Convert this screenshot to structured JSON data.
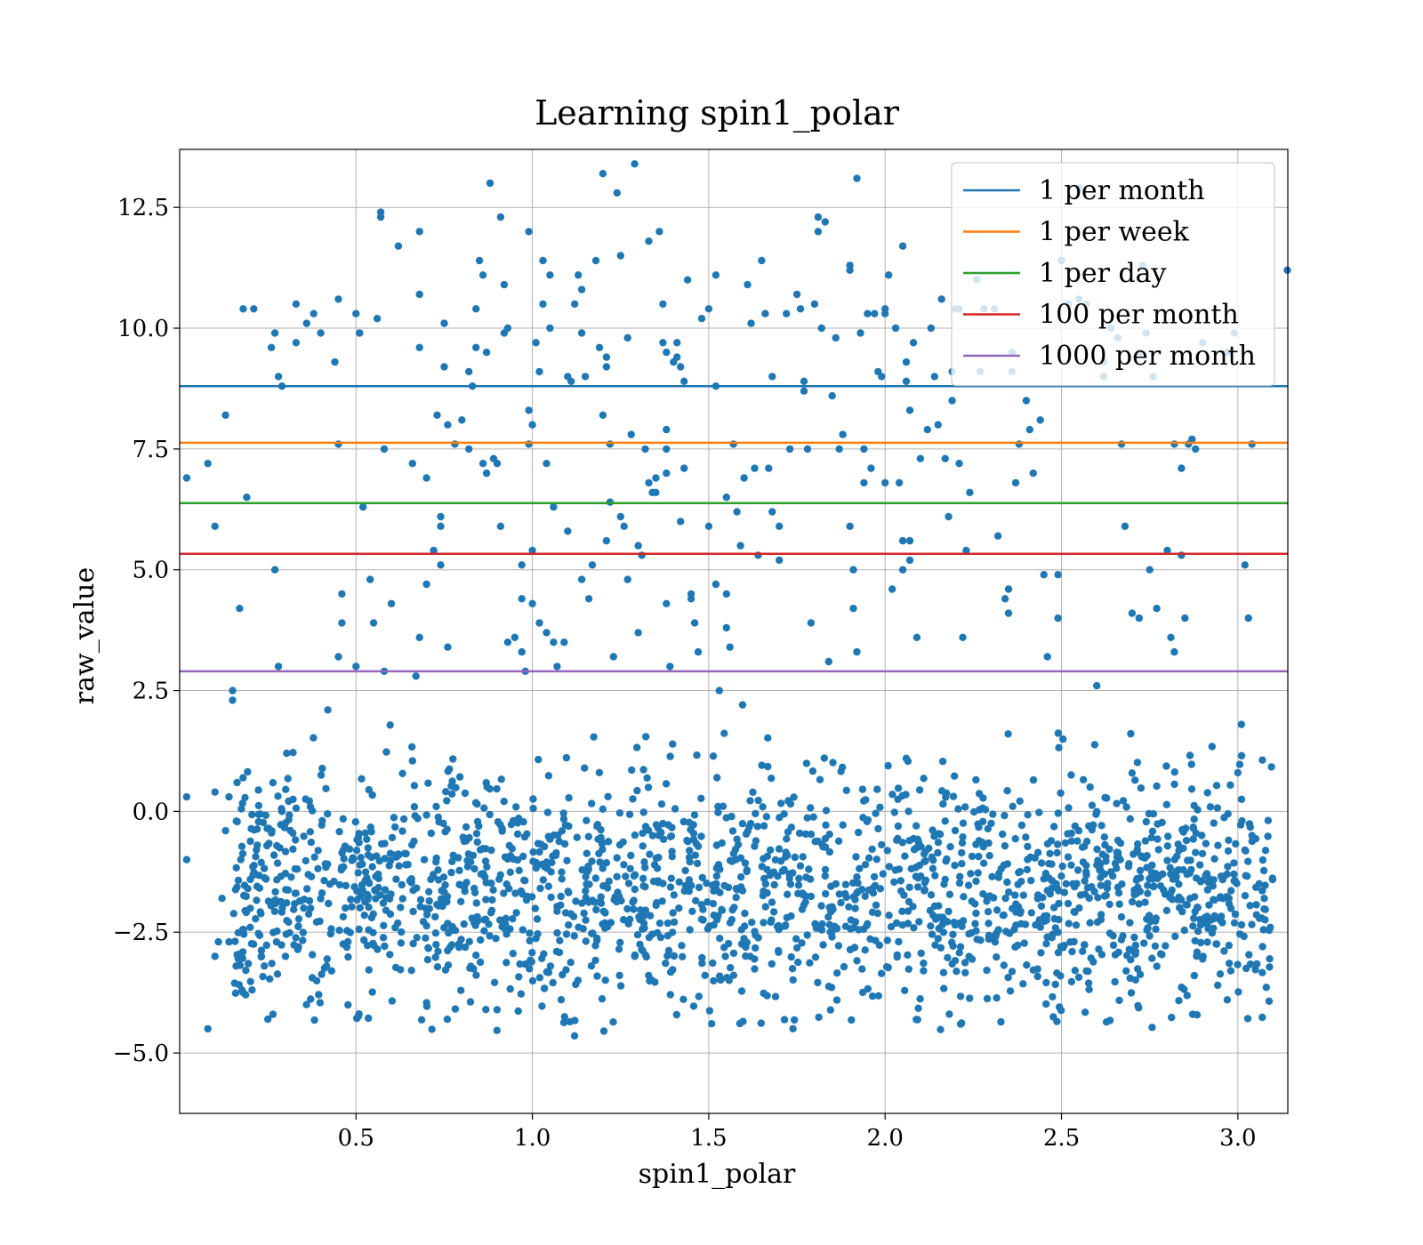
{
  "chart_data": {
    "type": "scatter",
    "title": "Learning spin1_polar",
    "xlabel": "spin1_polar",
    "ylabel": "raw_value",
    "xlim": [
      0.0,
      3.1416
    ],
    "ylim": [
      -6.25,
      13.7
    ],
    "xticks": [
      0.5,
      1.0,
      1.5,
      2.0,
      2.5,
      3.0
    ],
    "xtick_labels": [
      "0.5",
      "1.0",
      "1.5",
      "2.0",
      "2.5",
      "3.0"
    ],
    "yticks": [
      -5.0,
      -2.5,
      0.0,
      2.5,
      5.0,
      7.5,
      10.0,
      12.5
    ],
    "ytick_labels": [
      "−5.0",
      "−2.5",
      "0.0",
      "2.5",
      "5.0",
      "7.5",
      "10.0",
      "12.5"
    ],
    "grid": true,
    "legend_position": "top-right",
    "point_color": "#1f77b4",
    "scatter_points": [
      [
        0.02,
        0.3
      ],
      [
        0.02,
        -1.0
      ],
      [
        0.02,
        6.9
      ],
      [
        0.08,
        7.2
      ],
      [
        0.1,
        5.9
      ],
      [
        0.13,
        8.2
      ],
      [
        0.15,
        2.5
      ],
      [
        0.15,
        2.3
      ],
      [
        0.17,
        4.2
      ],
      [
        0.18,
        10.4
      ],
      [
        0.21,
        10.4
      ],
      [
        0.19,
        6.5
      ],
      [
        0.08,
        -4.5
      ],
      [
        0.1,
        -3.0
      ],
      [
        0.12,
        -1.8
      ],
      [
        0.14,
        -2.7
      ],
      [
        0.16,
        -3.2
      ],
      [
        0.2,
        -2.4
      ],
      [
        0.22,
        -0.7
      ],
      [
        0.24,
        -3.2
      ],
      [
        0.26,
        9.6
      ],
      [
        0.27,
        9.9
      ],
      [
        0.28,
        9.0
      ],
      [
        0.29,
        8.8
      ],
      [
        0.27,
        5.0
      ],
      [
        0.28,
        3.0
      ],
      [
        0.3,
        -3.0
      ],
      [
        0.33,
        10.5
      ],
      [
        0.33,
        9.7
      ],
      [
        0.36,
        10.1
      ],
      [
        0.38,
        10.3
      ],
      [
        0.4,
        9.9
      ],
      [
        0.42,
        2.1
      ],
      [
        0.44,
        9.3
      ],
      [
        0.45,
        10.6
      ],
      [
        0.45,
        7.6
      ],
      [
        0.46,
        4.5
      ],
      [
        0.46,
        3.9
      ],
      [
        0.45,
        3.2
      ],
      [
        0.5,
        10.3
      ],
      [
        0.51,
        9.9
      ],
      [
        0.5,
        3.0
      ],
      [
        0.52,
        6.3
      ],
      [
        0.54,
        4.8
      ],
      [
        0.55,
        3.9
      ],
      [
        0.56,
        10.2
      ],
      [
        0.57,
        12.4
      ],
      [
        0.57,
        12.3
      ],
      [
        0.58,
        7.5
      ],
      [
        0.6,
        4.3
      ],
      [
        0.62,
        11.7
      ],
      [
        0.58,
        2.9
      ],
      [
        0.66,
        7.2
      ],
      [
        0.68,
        12.0
      ],
      [
        0.68,
        10.7
      ],
      [
        0.68,
        9.6
      ],
      [
        0.68,
        3.6
      ],
      [
        0.67,
        2.8
      ],
      [
        0.7,
        6.9
      ],
      [
        0.7,
        4.7
      ],
      [
        0.72,
        5.4
      ],
      [
        0.73,
        8.2
      ],
      [
        0.74,
        6.1
      ],
      [
        0.74,
        5.9
      ],
      [
        0.74,
        5.1
      ],
      [
        0.75,
        10.1
      ],
      [
        0.75,
        9.2
      ],
      [
        0.76,
        8.0
      ],
      [
        0.76,
        3.4
      ],
      [
        0.78,
        7.6
      ],
      [
        0.8,
        8.1
      ],
      [
        0.82,
        7.5
      ],
      [
        0.82,
        9.1
      ],
      [
        0.83,
        8.8
      ],
      [
        0.84,
        10.4
      ],
      [
        0.84,
        9.6
      ],
      [
        0.85,
        11.4
      ],
      [
        0.86,
        11.1
      ],
      [
        0.87,
        9.5
      ],
      [
        0.86,
        7.2
      ],
      [
        0.87,
        7.0
      ],
      [
        0.88,
        13.0
      ],
      [
        0.89,
        7.3
      ],
      [
        0.9,
        7.2
      ],
      [
        0.91,
        5.9
      ],
      [
        0.91,
        12.3
      ],
      [
        0.92,
        10.9
      ],
      [
        0.92,
        9.9
      ],
      [
        0.93,
        10.0
      ],
      [
        0.93,
        3.5
      ],
      [
        0.95,
        3.6
      ],
      [
        0.97,
        5.1
      ],
      [
        0.97,
        4.4
      ],
      [
        0.97,
        3.3
      ],
      [
        0.98,
        2.9
      ],
      [
        0.99,
        12.0
      ],
      [
        0.99,
        8.3
      ],
      [
        0.99,
        7.6
      ],
      [
        1.0,
        8.0
      ],
      [
        1.0,
        5.4
      ],
      [
        1.0,
        4.3
      ],
      [
        1.01,
        9.7
      ],
      [
        1.02,
        9.1
      ],
      [
        1.02,
        3.9
      ],
      [
        1.03,
        10.5
      ],
      [
        1.03,
        11.4
      ],
      [
        1.04,
        7.2
      ],
      [
        1.04,
        3.7
      ],
      [
        1.05,
        11.1
      ],
      [
        1.05,
        10.0
      ],
      [
        1.06,
        6.3
      ],
      [
        1.06,
        3.5
      ],
      [
        1.07,
        3.0
      ],
      [
        1.09,
        3.5
      ],
      [
        1.1,
        5.8
      ],
      [
        1.1,
        9.0
      ],
      [
        1.11,
        8.9
      ],
      [
        1.12,
        10.5
      ],
      [
        1.13,
        11.1
      ],
      [
        1.14,
        10.8
      ],
      [
        1.14,
        9.9
      ],
      [
        1.14,
        4.8
      ],
      [
        1.15,
        9.0
      ],
      [
        1.16,
        4.4
      ],
      [
        1.17,
        5.1
      ],
      [
        1.18,
        11.4
      ],
      [
        1.19,
        9.6
      ],
      [
        1.2,
        8.2
      ],
      [
        1.2,
        13.2
      ],
      [
        1.21,
        9.4
      ],
      [
        1.21,
        9.2
      ],
      [
        1.21,
        5.6
      ],
      [
        1.22,
        7.6
      ],
      [
        1.22,
        6.4
      ],
      [
        1.23,
        3.2
      ],
      [
        1.24,
        12.8
      ],
      [
        1.25,
        11.5
      ],
      [
        1.25,
        6.1
      ],
      [
        1.26,
        5.9
      ],
      [
        1.27,
        4.8
      ],
      [
        1.27,
        9.8
      ],
      [
        1.28,
        7.8
      ],
      [
        1.29,
        13.4
      ],
      [
        1.3,
        5.5
      ],
      [
        1.3,
        3.7
      ],
      [
        1.31,
        5.3
      ],
      [
        1.32,
        7.5
      ],
      [
        1.33,
        11.8
      ],
      [
        1.33,
        6.8
      ],
      [
        1.34,
        6.6
      ],
      [
        1.35,
        6.9
      ],
      [
        1.35,
        6.6
      ],
      [
        1.36,
        12.0
      ],
      [
        1.37,
        10.5
      ],
      [
        1.37,
        9.7
      ],
      [
        1.38,
        9.5
      ],
      [
        1.38,
        7.9
      ],
      [
        1.38,
        7.5
      ],
      [
        1.38,
        7.0
      ],
      [
        1.38,
        4.3
      ],
      [
        1.39,
        3.0
      ],
      [
        1.4,
        9.3
      ],
      [
        1.41,
        9.7
      ],
      [
        1.41,
        9.4
      ],
      [
        1.42,
        9.2
      ],
      [
        1.42,
        6.0
      ],
      [
        1.43,
        8.9
      ],
      [
        1.43,
        7.1
      ],
      [
        1.44,
        11.0
      ],
      [
        1.45,
        4.5
      ],
      [
        1.45,
        4.4
      ],
      [
        1.46,
        3.9
      ],
      [
        1.47,
        3.3
      ],
      [
        1.48,
        10.2
      ],
      [
        1.5,
        10.4
      ],
      [
        1.5,
        5.9
      ],
      [
        1.52,
        11.1
      ],
      [
        1.52,
        8.8
      ],
      [
        1.52,
        4.7
      ],
      [
        1.53,
        2.5
      ],
      [
        1.55,
        6.5
      ],
      [
        1.55,
        4.5
      ],
      [
        1.55,
        3.8
      ],
      [
        1.56,
        3.4
      ],
      [
        1.57,
        7.6
      ],
      [
        1.58,
        6.2
      ],
      [
        1.59,
        5.5
      ],
      [
        1.6,
        6.9
      ],
      [
        1.61,
        10.9
      ],
      [
        1.62,
        10.1
      ],
      [
        1.63,
        7.1
      ],
      [
        1.64,
        5.3
      ],
      [
        1.65,
        11.4
      ],
      [
        1.66,
        10.3
      ],
      [
        1.67,
        7.1
      ],
      [
        1.68,
        9.0
      ],
      [
        1.68,
        6.2
      ],
      [
        1.7,
        5.9
      ],
      [
        1.7,
        5.2
      ],
      [
        1.72,
        10.3
      ],
      [
        1.73,
        7.5
      ],
      [
        1.75,
        10.7
      ],
      [
        1.76,
        10.4
      ],
      [
        1.77,
        8.9
      ],
      [
        1.77,
        8.7
      ],
      [
        1.78,
        7.5
      ],
      [
        1.79,
        3.9
      ],
      [
        1.8,
        10.5
      ],
      [
        1.81,
        12.3
      ],
      [
        1.81,
        12.0
      ],
      [
        1.82,
        10.0
      ],
      [
        1.83,
        12.2
      ],
      [
        1.84,
        3.1
      ],
      [
        1.85,
        8.6
      ],
      [
        1.86,
        9.8
      ],
      [
        1.87,
        7.5
      ],
      [
        1.88,
        7.8
      ],
      [
        1.9,
        11.3
      ],
      [
        1.9,
        11.2
      ],
      [
        1.9,
        5.9
      ],
      [
        1.91,
        5.0
      ],
      [
        1.91,
        4.2
      ],
      [
        1.92,
        3.3
      ],
      [
        1.92,
        13.1
      ],
      [
        1.93,
        9.9
      ],
      [
        1.94,
        7.5
      ],
      [
        1.94,
        6.8
      ],
      [
        1.95,
        10.3
      ],
      [
        1.96,
        7.1
      ],
      [
        1.97,
        10.3
      ],
      [
        1.98,
        9.1
      ],
      [
        1.99,
        9.0
      ],
      [
        2.0,
        10.4
      ],
      [
        2.0,
        10.3
      ],
      [
        2.0,
        6.8
      ],
      [
        2.01,
        11.1
      ],
      [
        2.02,
        4.6
      ],
      [
        2.03,
        10.0
      ],
      [
        2.04,
        6.8
      ],
      [
        2.05,
        5.6
      ],
      [
        2.05,
        5.0
      ],
      [
        2.05,
        11.7
      ],
      [
        2.06,
        9.3
      ],
      [
        2.06,
        8.9
      ],
      [
        2.07,
        8.3
      ],
      [
        2.07,
        5.6
      ],
      [
        2.07,
        5.2
      ],
      [
        2.08,
        9.7
      ],
      [
        2.09,
        3.6
      ],
      [
        2.1,
        7.3
      ],
      [
        2.12,
        7.9
      ],
      [
        2.13,
        10.0
      ],
      [
        2.14,
        9.0
      ],
      [
        2.15,
        8.0
      ],
      [
        2.16,
        10.6
      ],
      [
        2.17,
        7.3
      ],
      [
        2.18,
        6.1
      ],
      [
        2.19,
        8.5
      ],
      [
        2.19,
        9.1
      ],
      [
        2.2,
        10.4
      ],
      [
        2.21,
        10.4
      ],
      [
        2.21,
        7.2
      ],
      [
        2.22,
        3.6
      ],
      [
        2.23,
        5.4
      ],
      [
        2.24,
        6.6
      ],
      [
        2.26,
        11.0
      ],
      [
        2.27,
        9.1
      ],
      [
        2.28,
        10.4
      ],
      [
        2.31,
        10.4
      ],
      [
        2.32,
        5.7
      ],
      [
        2.34,
        4.4
      ],
      [
        2.35,
        4.6
      ],
      [
        2.35,
        4.1
      ],
      [
        2.36,
        9.5
      ],
      [
        2.36,
        9.1
      ],
      [
        2.37,
        6.8
      ],
      [
        2.38,
        7.6
      ],
      [
        2.4,
        8.5
      ],
      [
        2.41,
        7.9
      ],
      [
        2.42,
        7.0
      ],
      [
        2.44,
        8.1
      ],
      [
        2.45,
        4.9
      ],
      [
        2.46,
        3.2
      ],
      [
        2.49,
        4.9
      ],
      [
        2.49,
        4.0
      ],
      [
        2.5,
        11.4
      ],
      [
        2.52,
        10.5
      ],
      [
        2.55,
        10.6
      ],
      [
        2.55,
        12.9
      ],
      [
        2.57,
        10.5
      ],
      [
        2.6,
        2.6
      ],
      [
        2.62,
        9.3
      ],
      [
        2.62,
        9.0
      ],
      [
        2.64,
        10.0
      ],
      [
        2.66,
        9.8
      ],
      [
        2.67,
        7.6
      ],
      [
        2.68,
        5.9
      ],
      [
        2.7,
        4.1
      ],
      [
        2.72,
        9.5
      ],
      [
        2.72,
        4.0
      ],
      [
        2.73,
        11.3
      ],
      [
        2.74,
        9.9
      ],
      [
        2.75,
        5.0
      ],
      [
        2.76,
        9.0
      ],
      [
        2.77,
        4.2
      ],
      [
        2.8,
        5.4
      ],
      [
        2.81,
        3.6
      ],
      [
        2.82,
        3.3
      ],
      [
        2.84,
        7.1
      ],
      [
        2.84,
        5.3
      ],
      [
        2.85,
        4.0
      ],
      [
        2.86,
        7.6
      ],
      [
        2.88,
        7.5
      ],
      [
        2.9,
        9.7
      ],
      [
        2.97,
        9.5
      ],
      [
        2.99,
        9.9
      ],
      [
        3.02,
        5.1
      ],
      [
        3.03,
        4.0
      ],
      [
        3.04,
        7.6
      ],
      [
        3.14,
        11.2
      ],
      [
        2.82,
        7.6
      ],
      [
        2.87,
        7.7
      ],
      [
        3.0,
        0.8
      ],
      [
        3.01,
        1.8
      ],
      [
        3.04,
        -0.5
      ],
      [
        3.07,
        -2.8
      ],
      [
        3.02,
        -0.8
      ],
      [
        2.98,
        -3.3
      ],
      [
        2.97,
        -3.9
      ],
      [
        0.1,
        0.4
      ],
      [
        0.14,
        0.3
      ],
      [
        0.11,
        -2.7
      ],
      [
        0.13,
        -0.4
      ]
    ],
    "series": [
      {
        "name": "1 per month",
        "y": 8.8,
        "color": "#1f77b4"
      },
      {
        "name": "1 per week",
        "y": 7.63,
        "color": "#ff7f0e"
      },
      {
        "name": "1 per day",
        "y": 6.38,
        "color": "#2ca02c"
      },
      {
        "name": "100 per month",
        "y": 5.33,
        "color": "#d62728"
      },
      {
        "name": "1000 per month",
        "y": 2.9,
        "color": "#9467bd"
      }
    ]
  }
}
